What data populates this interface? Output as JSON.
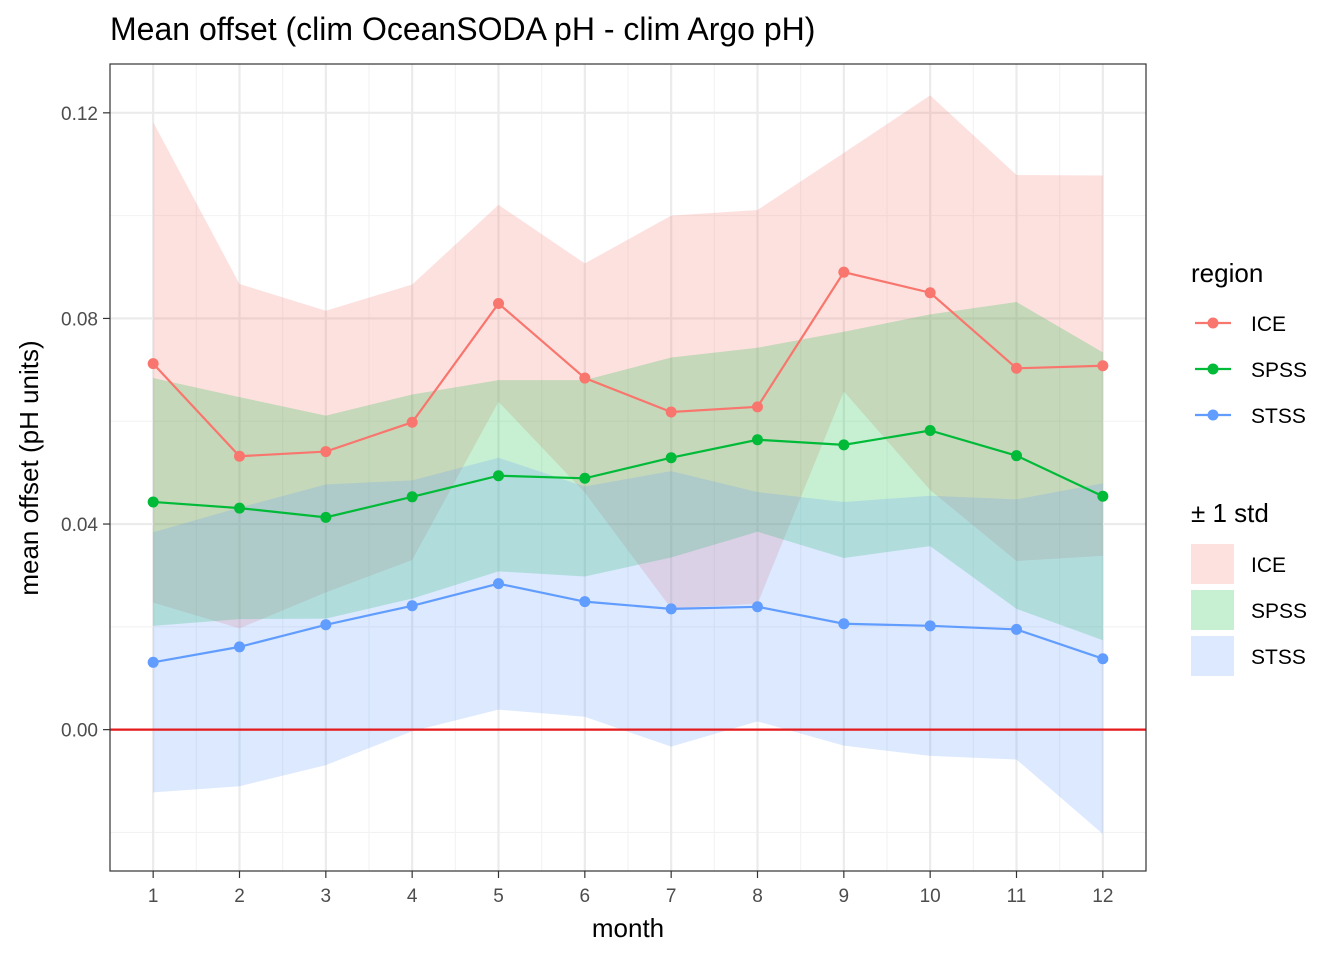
{
  "chart_data": {
    "type": "line",
    "title": "Mean offset (clim OceanSODA pH - clim Argo pH)",
    "xlabel": "month",
    "ylabel": "mean offset (pH units)",
    "x": [
      1,
      2,
      3,
      4,
      5,
      6,
      7,
      8,
      9,
      10,
      11,
      12
    ],
    "x_tick_labels": [
      "1",
      "2",
      "3",
      "4",
      "5",
      "6",
      "7",
      "8",
      "9",
      "10",
      "11",
      "12"
    ],
    "xlim": [
      0.5,
      12.5
    ],
    "ylim": [
      -0.0275,
      0.1295
    ],
    "y_ticks": [
      0.0,
      0.04,
      0.08,
      0.12
    ],
    "y_tick_labels": [
      "0.00",
      "0.04",
      "0.08",
      "0.12"
    ],
    "grid": true,
    "reference_line": {
      "y": 0.0,
      "color": "#e41a1c"
    },
    "series": [
      {
        "name": "ICE",
        "color": "#f8766d",
        "values": [
          0.0712,
          0.0532,
          0.0541,
          0.0598,
          0.0829,
          0.0684,
          0.0618,
          0.0628,
          0.089,
          0.085,
          0.0703,
          0.0708
        ],
        "lower": [
          0.0247,
          0.0197,
          0.0267,
          0.033,
          0.0638,
          0.0461,
          0.0236,
          0.0245,
          0.0658,
          0.0466,
          0.0328,
          0.0338
        ],
        "upper": [
          0.1182,
          0.0867,
          0.0815,
          0.0866,
          0.1021,
          0.0907,
          0.1,
          0.1011,
          0.1122,
          0.1234,
          0.1079,
          0.1078
        ]
      },
      {
        "name": "SPSS",
        "color": "#00ba38",
        "values": [
          0.0443,
          0.0431,
          0.0413,
          0.0453,
          0.0494,
          0.0489,
          0.0529,
          0.0564,
          0.0554,
          0.0582,
          0.0533,
          0.0454
        ],
        "lower": [
          0.0202,
          0.0215,
          0.0216,
          0.0255,
          0.0308,
          0.0298,
          0.0335,
          0.0385,
          0.0334,
          0.0357,
          0.0235,
          0.0174
        ],
        "upper": [
          0.0684,
          0.0647,
          0.0611,
          0.0652,
          0.068,
          0.068,
          0.0724,
          0.0743,
          0.0774,
          0.0808,
          0.0832,
          0.0734
        ]
      },
      {
        "name": "STSS",
        "color": "#619cff",
        "values": [
          0.0131,
          0.0161,
          0.0204,
          0.0241,
          0.0284,
          0.0249,
          0.0235,
          0.0239,
          0.0206,
          0.0202,
          0.0195,
          0.0138
        ],
        "lower": [
          -0.0122,
          -0.011,
          -0.0069,
          -0.0003,
          0.0039,
          0.0025,
          -0.0033,
          0.0016,
          -0.0031,
          -0.0051,
          -0.0058,
          -0.0203
        ],
        "upper": [
          0.0384,
          0.0432,
          0.0477,
          0.0485,
          0.0529,
          0.0473,
          0.0503,
          0.0462,
          0.0443,
          0.0455,
          0.0448,
          0.0479
        ]
      }
    ],
    "legends": [
      {
        "title": "region",
        "kind": "line-point",
        "items": [
          "ICE",
          "SPSS",
          "STSS"
        ],
        "colors": [
          "#f8766d",
          "#00ba38",
          "#619cff"
        ]
      },
      {
        "title": "± 1 std",
        "kind": "fill",
        "items": [
          "ICE",
          "SPSS",
          "STSS"
        ],
        "colors": [
          "#f8766d",
          "#00ba38",
          "#619cff"
        ]
      }
    ]
  }
}
